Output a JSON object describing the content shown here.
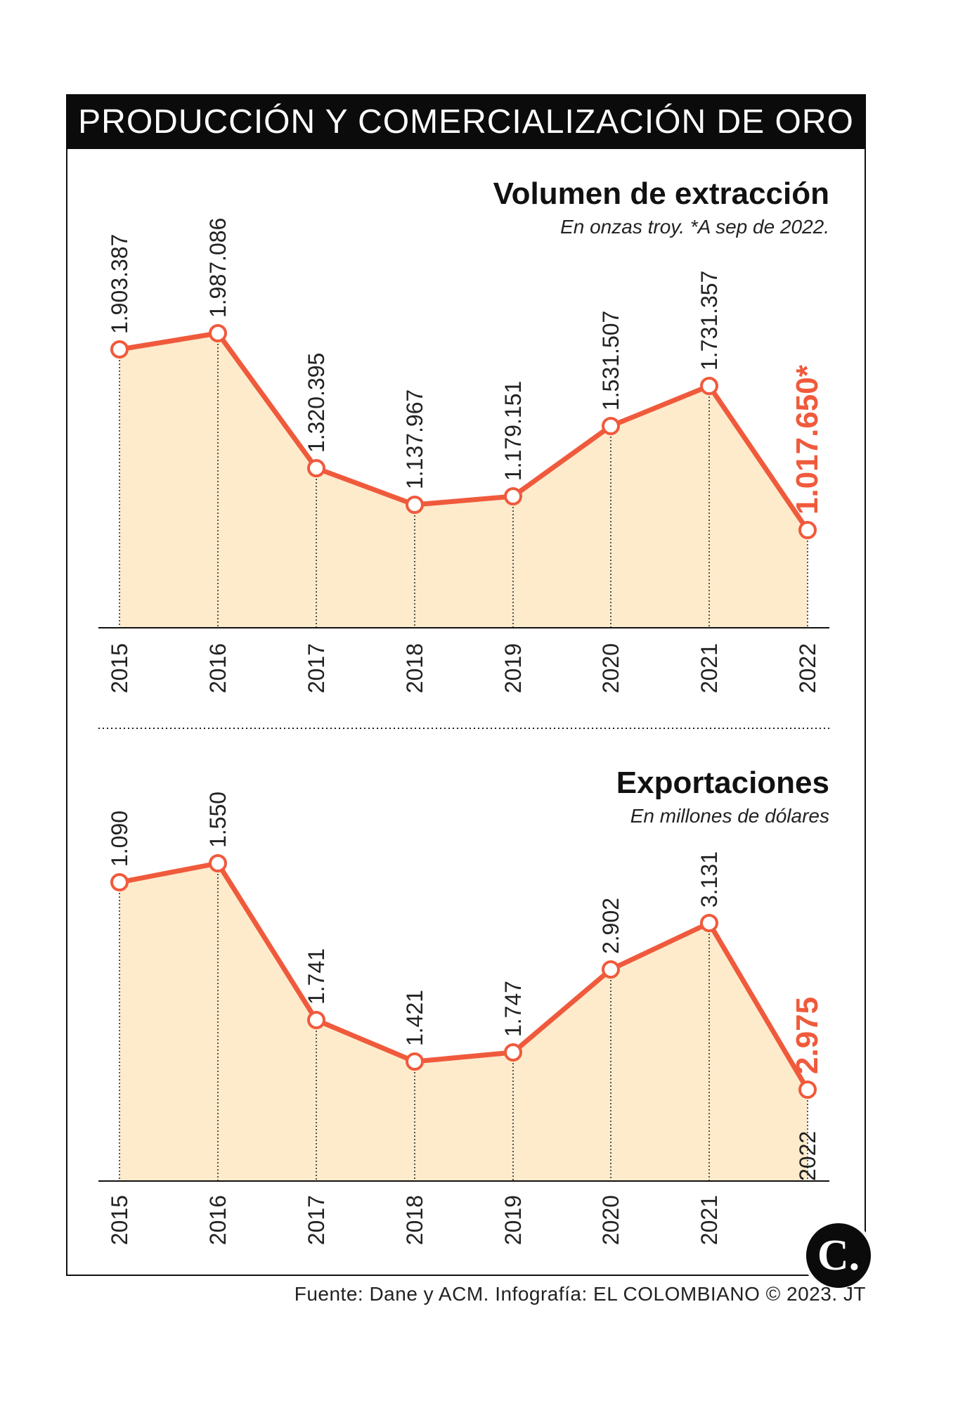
{
  "title": "PRODUCCIÓN Y COMERCIALIZACIÓN DE ORO",
  "source": "Fuente: Dane y ACM. Infografía: EL COLOMBIANO © 2023. JT",
  "logo_text": "C.",
  "colors": {
    "line": "#f05a3c",
    "fill": "#fdebcc",
    "title_bar": "#0b0b0b"
  },
  "chart_data": [
    {
      "type": "area",
      "title": "Volumen de extracción",
      "subtitle": "En onzas troy. *A sep de 2022.",
      "categories": [
        "2015",
        "2016",
        "2017",
        "2018",
        "2019",
        "2020",
        "2021",
        "2022"
      ],
      "values": [
        1903387,
        1987086,
        1320395,
        1137967,
        1179151,
        1531507,
        1731357,
        1017650
      ],
      "labels": [
        "1.903.387",
        "1.987.086",
        "1.320.395",
        "1.137.967",
        "1.179.151",
        "1.531.507",
        "1.731.357",
        "1.017.650*"
      ],
      "highlight_index": 7,
      "ylim": [
        0,
        2100000
      ]
    },
    {
      "type": "area",
      "title": "Exportaciones",
      "subtitle": "En millones de dólares",
      "categories": [
        "2015",
        "2016",
        "2017",
        "2018",
        "2019",
        "2020",
        "2021",
        "2022"
      ],
      "values": [
        1090,
        1550,
        1741,
        1421,
        1747,
        2902,
        3131,
        2975
      ],
      "labels": [
        "1.090",
        "1.550",
        "1.741",
        "1.421",
        "1.747",
        "2.902",
        "3.131",
        "2.975"
      ],
      "highlight_index": 7
    }
  ]
}
